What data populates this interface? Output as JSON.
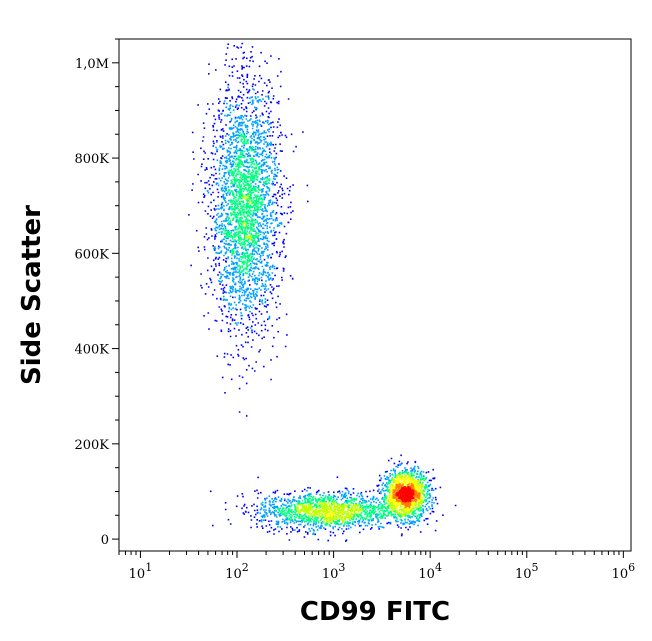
{
  "chart_data": {
    "type": "scatter",
    "subtype": "flow-cytometry-density-dot-plot",
    "title": "",
    "xlabel": "CD99 FITC",
    "ylabel": "Side Scatter",
    "x_scale": "log",
    "y_scale": "linear",
    "xlim": [
      6,
      1200000
    ],
    "ylim": [
      -25000,
      1050000
    ],
    "grid": false,
    "legend": "none",
    "x_ticks": [
      {
        "value": 10,
        "label": "10^1",
        "base": "10",
        "exp": "1"
      },
      {
        "value": 100,
        "label": "10^2",
        "base": "10",
        "exp": "2"
      },
      {
        "value": 1000,
        "label": "10^3",
        "base": "10",
        "exp": "3"
      },
      {
        "value": 10000,
        "label": "10^4",
        "base": "10",
        "exp": "4"
      },
      {
        "value": 100000,
        "label": "10^5",
        "base": "10",
        "exp": "5"
      },
      {
        "value": 1000000,
        "label": "10^6",
        "base": "10",
        "exp": "6"
      }
    ],
    "y_ticks": [
      {
        "value": 0,
        "label": "0"
      },
      {
        "value": 200000,
        "label": "200K"
      },
      {
        "value": 400000,
        "label": "400K"
      },
      {
        "value": 600000,
        "label": "600K"
      },
      {
        "value": 800000,
        "label": "800K"
      },
      {
        "value": 1000000,
        "label": "1,0M"
      }
    ],
    "density_colors": [
      "#0000ff",
      "#00a0ff",
      "#00ff80",
      "#c0ff00",
      "#ffff00",
      "#ff8000",
      "#ff0000"
    ],
    "populations": [
      {
        "name": "",
        "center_x": 120,
        "center_y": 700000,
        "spread_log10_x": 0.18,
        "spread_y": 130000,
        "events": 3000
      },
      {
        "name": "",
        "center_x": 800,
        "center_y": 60000,
        "spread_log10_x": 0.35,
        "spread_y": 20000,
        "events": 1500
      },
      {
        "name": "",
        "center_x": 5500,
        "center_y": 95000,
        "spread_log10_x": 0.12,
        "spread_y": 25000,
        "events": 1500
      }
    ]
  }
}
